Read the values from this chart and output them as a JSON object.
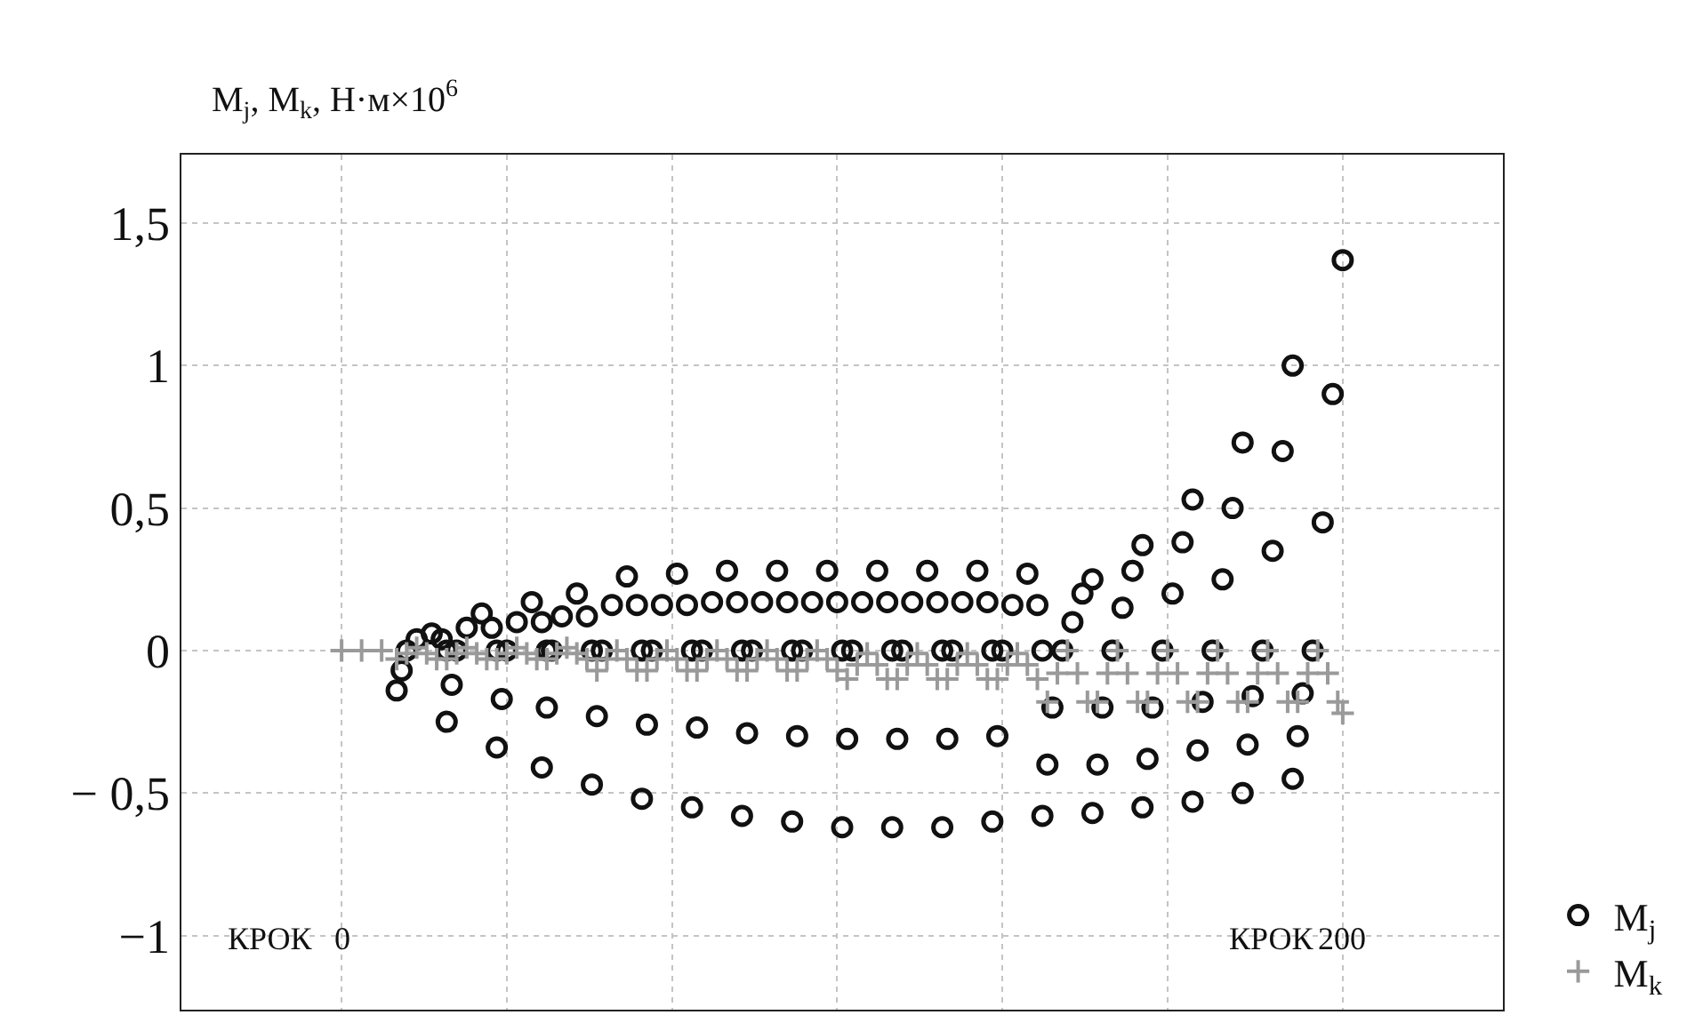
{
  "chart_data": {
    "type": "scatter",
    "ylabel": "M$_{j}$, M$_{k}$, Н·м×10$^{6}$",
    "xlim": [
      -32,
      232
    ],
    "xticks": [
      0,
      {
        "value": 33,
        "label": null
      },
      {
        "value": 66,
        "label": null
      },
      {
        "value": 99,
        "label": null
      },
      {
        "value": 132,
        "label": null
      },
      {
        "value": 165,
        "label": null
      },
      200
    ],
    "ylim": [
      -1.26,
      1.74
    ],
    "yticks": [
      {
        "value": -1,
        "label": "−1"
      },
      {
        "value": -0.5,
        "label": "− 0,5"
      },
      {
        "value": 0,
        "label": "0"
      },
      {
        "value": 0.5,
        "label": "0,5"
      },
      {
        "value": 1,
        "label": "1"
      },
      {
        "value": 1.5,
        "label": "1,5"
      }
    ],
    "grid": true,
    "legend": "bottom right",
    "annotations": [
      "КРОК",
      "КРОК"
    ],
    "series": [
      {
        "name": "M$_{j}$",
        "color": "#111111",
        "marker": "circle",
        "x": [
          11,
          12,
          13,
          15,
          18,
          20,
          21,
          21,
          22,
          23,
          25,
          28,
          30,
          31,
          31,
          32,
          33,
          35,
          38,
          40,
          41,
          40,
          41,
          42,
          44,
          47,
          49,
          50,
          50,
          51,
          52,
          54,
          57,
          59,
          60,
          60,
          61,
          62,
          64,
          67,
          69,
          70,
          70,
          71,
          72,
          74,
          77,
          79,
          80,
          80,
          81,
          82,
          84,
          87,
          89,
          90,
          90,
          91,
          92,
          94,
          97,
          99,
          100,
          100,
          101,
          102,
          104,
          107,
          109,
          110,
          110,
          111,
          112,
          114,
          117,
          119,
          120,
          120,
          121,
          122,
          124,
          127,
          129,
          130,
          130,
          131,
          132,
          134,
          137,
          139,
          140,
          140,
          141,
          142,
          144,
          146,
          148,
          150,
          150,
          151,
          152,
          154,
          156,
          158,
          160,
          160,
          161,
          162,
          164,
          166,
          168,
          170,
          170,
          171,
          172,
          174,
          176,
          178,
          180,
          180,
          181,
          182,
          184,
          186,
          188,
          190,
          190,
          191,
          192,
          194,
          196,
          198,
          200
        ],
        "values": [
          -0.14,
          -0.07,
          0,
          0.04,
          0.06,
          0.04,
          0,
          -0.25,
          -0.12,
          0,
          0.08,
          0.13,
          0.08,
          0,
          -0.34,
          -0.17,
          0,
          0.1,
          0.17,
          0.1,
          0,
          -0.41,
          -0.2,
          0,
          0.12,
          0.2,
          0.12,
          0,
          -0.47,
          -0.23,
          0,
          0.16,
          0.26,
          0.16,
          0,
          -0.52,
          -0.26,
          0,
          0.16,
          0.27,
          0.16,
          0,
          -0.55,
          -0.27,
          0,
          0.17,
          0.28,
          0.17,
          0,
          -0.58,
          -0.29,
          0,
          0.17,
          0.28,
          0.17,
          0,
          -0.6,
          -0.3,
          0,
          0.17,
          0.28,
          0.17,
          0,
          -0.62,
          -0.31,
          0,
          0.17,
          0.28,
          0.17,
          0,
          -0.62,
          -0.31,
          0,
          0.17,
          0.28,
          0.17,
          0,
          -0.62,
          -0.31,
          0,
          0.17,
          0.28,
          0.17,
          0,
          -0.6,
          -0.3,
          0,
          0.16,
          0.27,
          0.16,
          0,
          -0.58,
          -0.4,
          -0.2,
          0,
          0.1,
          0.2,
          0.25,
          -0.57,
          -0.4,
          -0.2,
          0,
          0.15,
          0.28,
          0.37,
          -0.55,
          -0.38,
          -0.2,
          0,
          0.2,
          0.38,
          0.53,
          -0.53,
          -0.35,
          -0.18,
          0,
          0.25,
          0.5,
          0.73,
          -0.5,
          -0.33,
          -0.16,
          0,
          0.35,
          0.7,
          1.0,
          -0.45,
          -0.3,
          -0.15,
          0,
          0.45,
          0.9,
          1.37
        ]
      },
      {
        "name": "M$_{k}$",
        "color": "#9a9a9a",
        "marker": "cross",
        "x": [
          0,
          4,
          8,
          11,
          13,
          15,
          17,
          19,
          21,
          23,
          25,
          27,
          29,
          31,
          33,
          35,
          37,
          39,
          41,
          43,
          45,
          47,
          49,
          51,
          53,
          55,
          57,
          59,
          61,
          63,
          65,
          67,
          69,
          71,
          73,
          75,
          77,
          79,
          81,
          83,
          85,
          87,
          89,
          91,
          93,
          95,
          97,
          99,
          101,
          103,
          105,
          107,
          109,
          111,
          113,
          115,
          117,
          119,
          121,
          123,
          125,
          127,
          129,
          131,
          133,
          135,
          137,
          139,
          141,
          143,
          145,
          147,
          149,
          151,
          153,
          155,
          157,
          159,
          161,
          163,
          165,
          167,
          169,
          171,
          173,
          175,
          177,
          179,
          181,
          183,
          185,
          187,
          189,
          191,
          193,
          195,
          197,
          199,
          200
        ],
        "values": [
          0,
          0,
          0,
          -0.03,
          -0.01,
          0.01,
          -0.01,
          -0.03,
          -0.03,
          -0.01,
          0.01,
          -0.01,
          -0.03,
          -0.03,
          -0.01,
          0.01,
          -0.01,
          -0.03,
          -0.03,
          -0.01,
          0.01,
          -0.01,
          -0.03,
          -0.07,
          -0.03,
          0,
          -0.03,
          -0.07,
          -0.07,
          -0.03,
          0,
          -0.03,
          -0.07,
          -0.07,
          -0.03,
          0,
          -0.03,
          -0.07,
          -0.07,
          -0.03,
          0,
          -0.03,
          -0.07,
          -0.07,
          -0.03,
          0,
          -0.03,
          -0.07,
          -0.1,
          -0.05,
          -0.01,
          -0.05,
          -0.1,
          -0.1,
          -0.05,
          -0.01,
          -0.05,
          -0.1,
          -0.1,
          -0.05,
          -0.01,
          -0.05,
          -0.1,
          -0.1,
          -0.05,
          -0.01,
          -0.05,
          -0.1,
          -0.18,
          -0.08,
          0,
          -0.08,
          -0.18,
          -0.18,
          -0.08,
          0,
          -0.08,
          -0.18,
          -0.18,
          -0.08,
          0,
          -0.08,
          -0.18,
          -0.18,
          -0.08,
          0,
          -0.08,
          -0.18,
          -0.18,
          -0.08,
          0,
          -0.08,
          -0.18,
          -0.18,
          -0.08,
          0,
          -0.08,
          -0.18,
          -0.22
        ]
      }
    ]
  }
}
